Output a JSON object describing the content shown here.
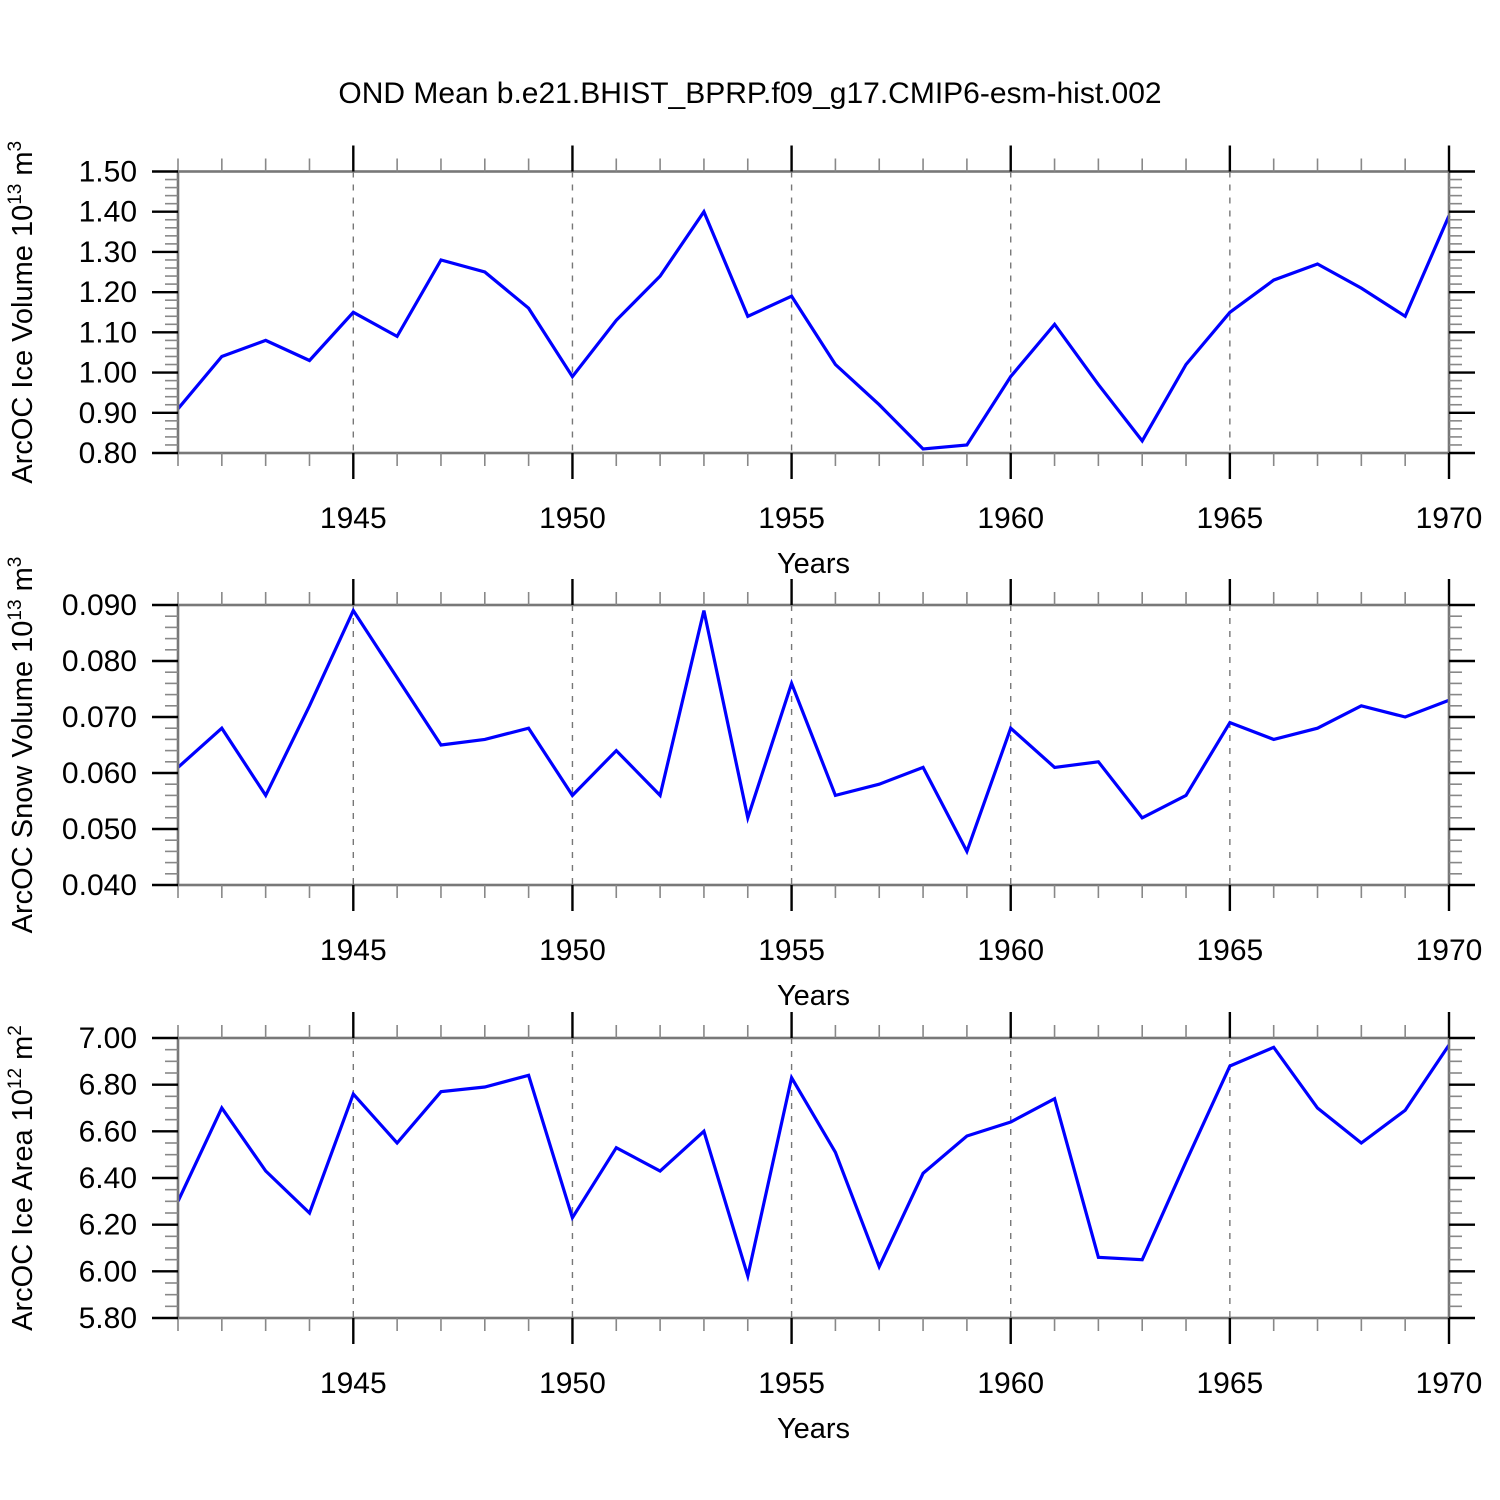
{
  "title": "OND Mean b.e21.BHIST_BPRP.f09_g17.CMIP6-esm-hist.002",
  "colors": {
    "line": "#0000ff",
    "frame": "#787878",
    "major_tick": "#000000",
    "minor_tick": "#888888",
    "grid": "#777777",
    "text": "#000000",
    "background": "#ffffff"
  },
  "chart_data": [
    {
      "type": "line",
      "name": "ice-volume",
      "ylabel": {
        "prefix": "ArcOC Ice Volume 10",
        "exp": "13",
        "suffix": " m",
        "exp2": "3"
      },
      "xlabel": "Years",
      "x": [
        1941,
        1942,
        1943,
        1944,
        1945,
        1946,
        1947,
        1948,
        1949,
        1950,
        1951,
        1952,
        1953,
        1954,
        1955,
        1956,
        1957,
        1958,
        1959,
        1960,
        1961,
        1962,
        1963,
        1964,
        1965,
        1966,
        1967,
        1968,
        1969,
        1970
      ],
      "values": [
        0.91,
        1.04,
        1.08,
        1.03,
        1.15,
        1.09,
        1.28,
        1.25,
        1.16,
        0.99,
        1.13,
        1.24,
        1.4,
        1.14,
        1.19,
        1.02,
        0.92,
        0.81,
        0.82,
        0.99,
        1.12,
        0.97,
        0.83,
        1.02,
        1.15,
        1.23,
        1.27,
        1.21,
        1.14,
        1.39
      ],
      "ylim": [
        0.8,
        1.5
      ],
      "ymajor": 0.1,
      "yminor": 0.02,
      "ytick_decimals": 2,
      "ytick_labels": [
        "0.80",
        "0.90",
        "1.00",
        "1.10",
        "1.20",
        "1.30",
        "1.40",
        "1.50"
      ],
      "xlim": [
        1941,
        1970
      ],
      "xticks": [
        1945,
        1950,
        1955,
        1960,
        1965,
        1970
      ],
      "xminor_step": 1,
      "grid": "vertical-dashed",
      "legend": "none"
    },
    {
      "type": "line",
      "name": "snow-volume",
      "ylabel": {
        "prefix": "ArcOC Snow Volume 10",
        "exp": "13",
        "suffix": " m",
        "exp2": "3"
      },
      "xlabel": "Years",
      "x": [
        1941,
        1942,
        1943,
        1944,
        1945,
        1946,
        1947,
        1948,
        1949,
        1950,
        1951,
        1952,
        1953,
        1954,
        1955,
        1956,
        1957,
        1958,
        1959,
        1960,
        1961,
        1962,
        1963,
        1964,
        1965,
        1966,
        1967,
        1968,
        1969,
        1970
      ],
      "values": [
        0.061,
        0.068,
        0.056,
        0.072,
        0.089,
        0.077,
        0.065,
        0.066,
        0.068,
        0.056,
        0.064,
        0.056,
        0.089,
        0.052,
        0.076,
        0.056,
        0.058,
        0.061,
        0.046,
        0.068,
        0.061,
        0.062,
        0.052,
        0.056,
        0.069,
        0.066,
        0.068,
        0.072,
        0.07,
        0.073
      ],
      "ylim": [
        0.04,
        0.09
      ],
      "ymajor": 0.01,
      "yminor": 0.002,
      "ytick_decimals": 3,
      "ytick_labels": [
        "0.040",
        "0.050",
        "0.060",
        "0.070",
        "0.080",
        "0.090"
      ],
      "xlim": [
        1941,
        1970
      ],
      "xticks": [
        1945,
        1950,
        1955,
        1960,
        1965,
        1970
      ],
      "xminor_step": 1,
      "grid": "vertical-dashed",
      "legend": "none"
    },
    {
      "type": "line",
      "name": "ice-area",
      "ylabel": {
        "prefix": "ArcOC Ice Area 10",
        "exp": "12",
        "suffix": " m",
        "exp2": "2"
      },
      "xlabel": "Years",
      "x": [
        1941,
        1942,
        1943,
        1944,
        1945,
        1946,
        1947,
        1948,
        1949,
        1950,
        1951,
        1952,
        1953,
        1954,
        1955,
        1956,
        1957,
        1958,
        1959,
        1960,
        1961,
        1962,
        1963,
        1964,
        1965,
        1966,
        1967,
        1968,
        1969,
        1970
      ],
      "values": [
        6.3,
        6.7,
        6.43,
        6.25,
        6.76,
        6.55,
        6.77,
        6.79,
        6.84,
        6.23,
        6.53,
        6.43,
        6.6,
        5.98,
        6.83,
        6.51,
        6.02,
        6.42,
        6.58,
        6.64,
        6.74,
        6.06,
        6.05,
        6.47,
        6.88,
        6.96,
        6.7,
        6.55,
        6.69,
        6.97
      ],
      "ylim": [
        5.8,
        7.0
      ],
      "ymajor": 0.2,
      "yminor": 0.05,
      "ytick_decimals": 2,
      "ytick_labels": [
        "5.80",
        "6.00",
        "6.20",
        "6.40",
        "6.60",
        "6.80",
        "7.00"
      ],
      "xlim": [
        1941,
        1970
      ],
      "xticks": [
        1945,
        1950,
        1955,
        1960,
        1965,
        1970
      ],
      "xminor_step": 1,
      "grid": "vertical-dashed",
      "legend": "none"
    }
  ]
}
